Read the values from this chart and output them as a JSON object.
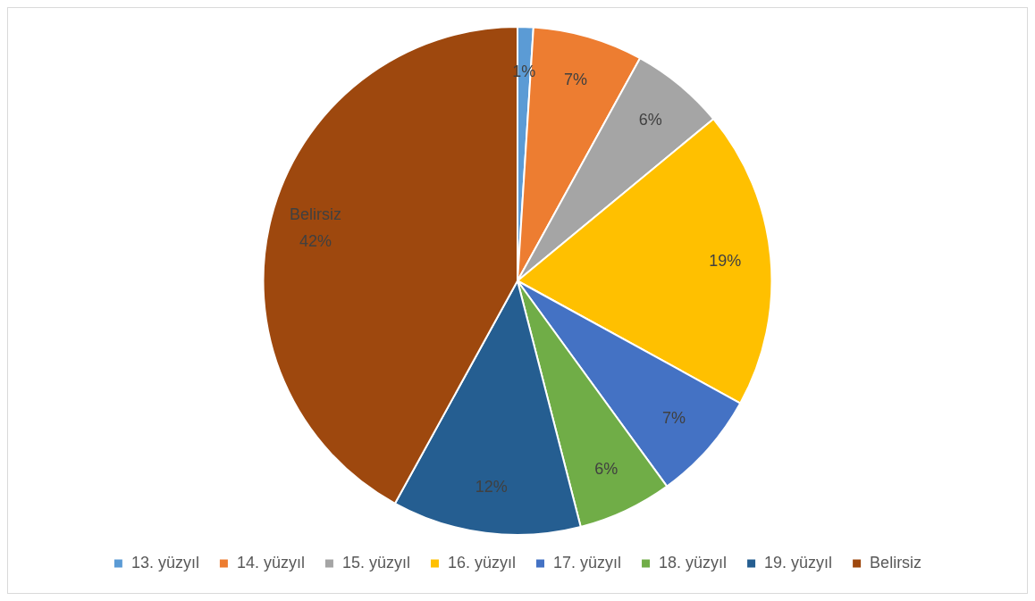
{
  "chart_data": {
    "type": "pie",
    "categories": [
      "13. yüzyıl",
      "14. yüzyıl",
      "15. yüzyıl",
      "16. yüzyıl",
      "17. yüzyıl",
      "18. yüzyıl",
      "19. yüzyıl",
      "Belirsiz"
    ],
    "values": [
      1,
      7,
      6,
      19,
      7,
      6,
      12,
      42
    ],
    "colors": [
      "#5b9bd5",
      "#ed7d31",
      "#a5a5a5",
      "#ffc000",
      "#4472c4",
      "#70ad47",
      "#255e91",
      "#9e480e"
    ],
    "value_labels": [
      "1%",
      "7%",
      "6%",
      "19%",
      "7%",
      "6%",
      "12%",
      "Belirsiz\n42%"
    ],
    "legend": "bottom"
  }
}
